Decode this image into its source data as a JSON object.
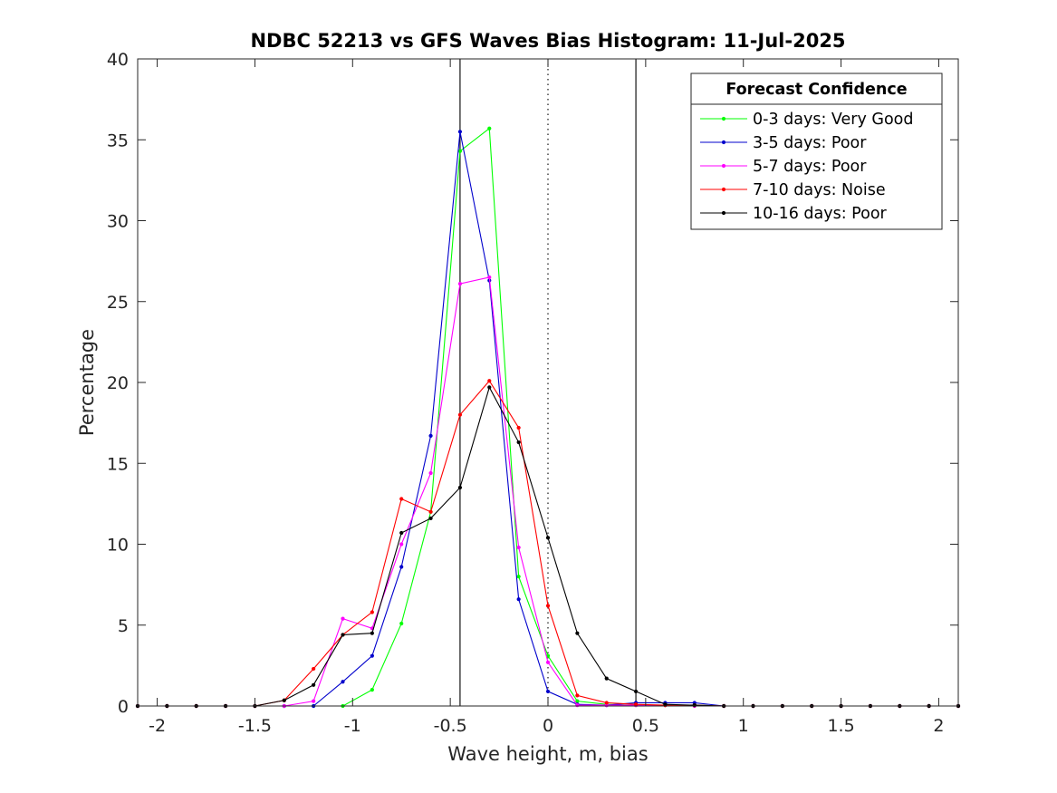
{
  "chart_data": {
    "type": "line",
    "title": "NDBC 52213 vs GFS Waves Bias Histogram: 11-Jul-2025",
    "xlabel": "Wave height, m, bias",
    "ylabel": "Percentage",
    "xlim": [
      -2.1,
      2.1
    ],
    "ylim": [
      0,
      40
    ],
    "xticks": [
      -2,
      -1.5,
      -1,
      -0.5,
      0,
      0.5,
      1,
      1.5,
      2
    ],
    "yticks": [
      0,
      5,
      10,
      15,
      20,
      25,
      30,
      35,
      40
    ],
    "grid": false,
    "x": [
      -2.1,
      -1.95,
      -1.8,
      -1.65,
      -1.5,
      -1.35,
      -1.2,
      -1.05,
      -0.9,
      -0.75,
      -0.6,
      -0.45,
      -0.3,
      -0.15,
      0,
      0.15,
      0.3,
      0.45,
      0.6,
      0.75,
      0.9,
      1.05,
      1.2,
      1.35,
      1.5,
      1.65,
      1.8,
      1.95,
      2.1
    ],
    "vertical_lines": [
      {
        "x": -0.45,
        "style": "solid"
      },
      {
        "x": 0,
        "style": "dotted"
      },
      {
        "x": 0.45,
        "style": "solid"
      }
    ],
    "legend": {
      "title": "Forecast Confidence",
      "position": "top-right"
    },
    "series": [
      {
        "name": "0-3 days: Very Good",
        "color": "#00ff00",
        "values": [
          0,
          0,
          0,
          0,
          0,
          0,
          0,
          0,
          1.0,
          5.1,
          12.0,
          34.3,
          35.7,
          8.0,
          3.1,
          0.3,
          0.1,
          0.05,
          0.05,
          0.05,
          0,
          0,
          0,
          0,
          0,
          0,
          0,
          0,
          0
        ]
      },
      {
        "name": "3-5 days: Poor",
        "color": "#0000cc",
        "values": [
          0,
          0,
          0,
          0,
          0,
          0,
          0,
          1.5,
          3.1,
          8.6,
          16.7,
          35.5,
          26.3,
          6.6,
          0.9,
          0.1,
          0.05,
          0.2,
          0.2,
          0.2,
          0,
          0,
          0,
          0,
          0,
          0,
          0,
          0,
          0
        ]
      },
      {
        "name": "5-7 days: Poor",
        "color": "#ff00ff",
        "values": [
          0,
          0,
          0,
          0,
          0,
          0,
          0.3,
          5.4,
          4.8,
          10.0,
          14.4,
          26.1,
          26.5,
          9.8,
          2.7,
          0.05,
          0.05,
          0.05,
          0.05,
          0,
          0,
          0,
          0,
          0,
          0,
          0,
          0,
          0,
          0
        ]
      },
      {
        "name": "7-10 days: Noise",
        "color": "#ff0000",
        "values": [
          0,
          0,
          0,
          0,
          0,
          0.35,
          2.3,
          4.4,
          5.8,
          12.8,
          12.0,
          18.0,
          20.1,
          17.2,
          6.2,
          0.65,
          0.2,
          0.1,
          0.05,
          0.05,
          0,
          0,
          0,
          0,
          0,
          0,
          0,
          0,
          0
        ]
      },
      {
        "name": "10-16 days: Poor",
        "color": "#000000",
        "values": [
          0,
          0,
          0,
          0,
          0,
          0.35,
          1.3,
          4.4,
          4.5,
          10.7,
          11.6,
          13.5,
          19.7,
          16.3,
          10.4,
          4.5,
          1.7,
          0.9,
          0.1,
          0.05,
          0,
          0,
          0,
          0,
          0,
          0,
          0,
          0,
          0
        ]
      }
    ]
  }
}
